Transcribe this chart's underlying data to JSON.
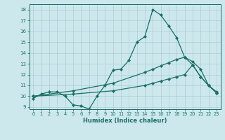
{
  "xlabel": "Humidex (Indice chaleur)",
  "ylabel": "",
  "bg_color": "#cde8ec",
  "grid_color": "#aacdd4",
  "line_color": "#1a6e64",
  "xlim": [
    -0.5,
    23.5
  ],
  "ylim": [
    8.8,
    18.5
  ],
  "xticks": [
    0,
    1,
    2,
    3,
    4,
    5,
    6,
    7,
    8,
    9,
    10,
    11,
    12,
    13,
    14,
    15,
    16,
    17,
    18,
    19,
    20,
    21,
    22,
    23
  ],
  "yticks": [
    9,
    10,
    11,
    12,
    13,
    14,
    15,
    16,
    17,
    18
  ],
  "curve1_x": [
    0,
    1,
    2,
    3,
    4,
    5,
    6,
    7,
    8,
    9,
    10,
    11,
    12,
    13,
    14,
    15,
    16,
    17,
    18,
    19,
    20,
    21,
    22,
    23
  ],
  "curve1_y": [
    9.8,
    10.2,
    10.4,
    10.4,
    10.0,
    9.2,
    9.1,
    8.8,
    10.0,
    11.0,
    12.4,
    12.5,
    13.3,
    15.0,
    15.5,
    18.0,
    17.5,
    16.5,
    15.4,
    13.6,
    12.9,
    11.8,
    11.0,
    10.3
  ],
  "curve2_x": [
    0,
    5,
    10,
    14,
    15,
    16,
    17,
    18,
    19,
    20,
    21,
    22,
    23
  ],
  "curve2_y": [
    10.0,
    10.5,
    11.2,
    12.2,
    12.5,
    12.8,
    13.1,
    13.4,
    13.6,
    13.2,
    12.5,
    11.0,
    10.3
  ],
  "curve3_x": [
    0,
    5,
    10,
    14,
    15,
    16,
    17,
    18,
    19,
    20,
    21,
    22,
    23
  ],
  "curve3_y": [
    10.0,
    10.2,
    10.5,
    11.0,
    11.2,
    11.4,
    11.6,
    11.8,
    12.0,
    12.9,
    11.8,
    11.0,
    10.4
  ]
}
